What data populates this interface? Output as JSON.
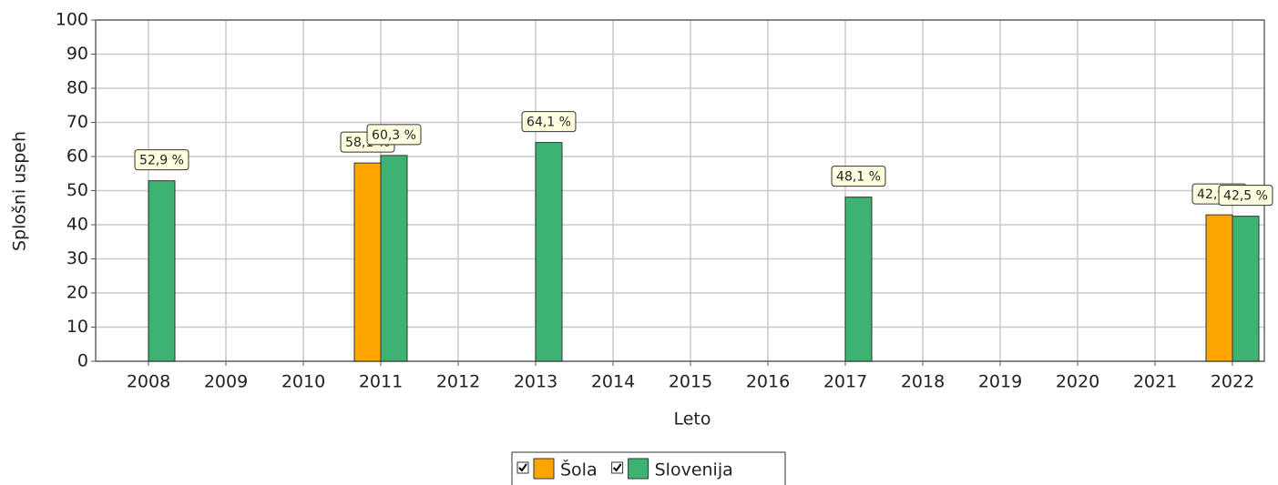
{
  "chart_data": {
    "type": "bar",
    "categories": [
      "2008",
      "2009",
      "2010",
      "2011",
      "2012",
      "2013",
      "2014",
      "2015",
      "2016",
      "2017",
      "2018",
      "2019",
      "2020",
      "2021",
      "2022"
    ],
    "series": [
      {
        "name": "Šola",
        "color": "#ffa500",
        "values": [
          null,
          null,
          null,
          58.1,
          null,
          null,
          null,
          null,
          null,
          null,
          null,
          null,
          null,
          null,
          42.9
        ],
        "value_labels": [
          null,
          null,
          null,
          "58,1 %",
          null,
          null,
          null,
          null,
          null,
          null,
          null,
          null,
          null,
          null,
          "42,9 %"
        ]
      },
      {
        "name": "Slovenija",
        "color": "#3cb371",
        "values": [
          52.9,
          null,
          null,
          60.3,
          null,
          64.1,
          null,
          null,
          null,
          48.1,
          null,
          null,
          null,
          null,
          42.5
        ],
        "value_labels": [
          "52,9 %",
          null,
          null,
          "60,3 %",
          null,
          "64,1 %",
          null,
          null,
          null,
          "48,1 %",
          null,
          null,
          null,
          null,
          "42,5 %"
        ]
      }
    ],
    "x_label": "Leto",
    "y_label": "Splošni uspeh",
    "ylim": [
      0,
      100
    ],
    "yticks": [
      0,
      10,
      20,
      30,
      40,
      50,
      60,
      70,
      80,
      90,
      100
    ],
    "grid": true,
    "legend": "bottom"
  }
}
